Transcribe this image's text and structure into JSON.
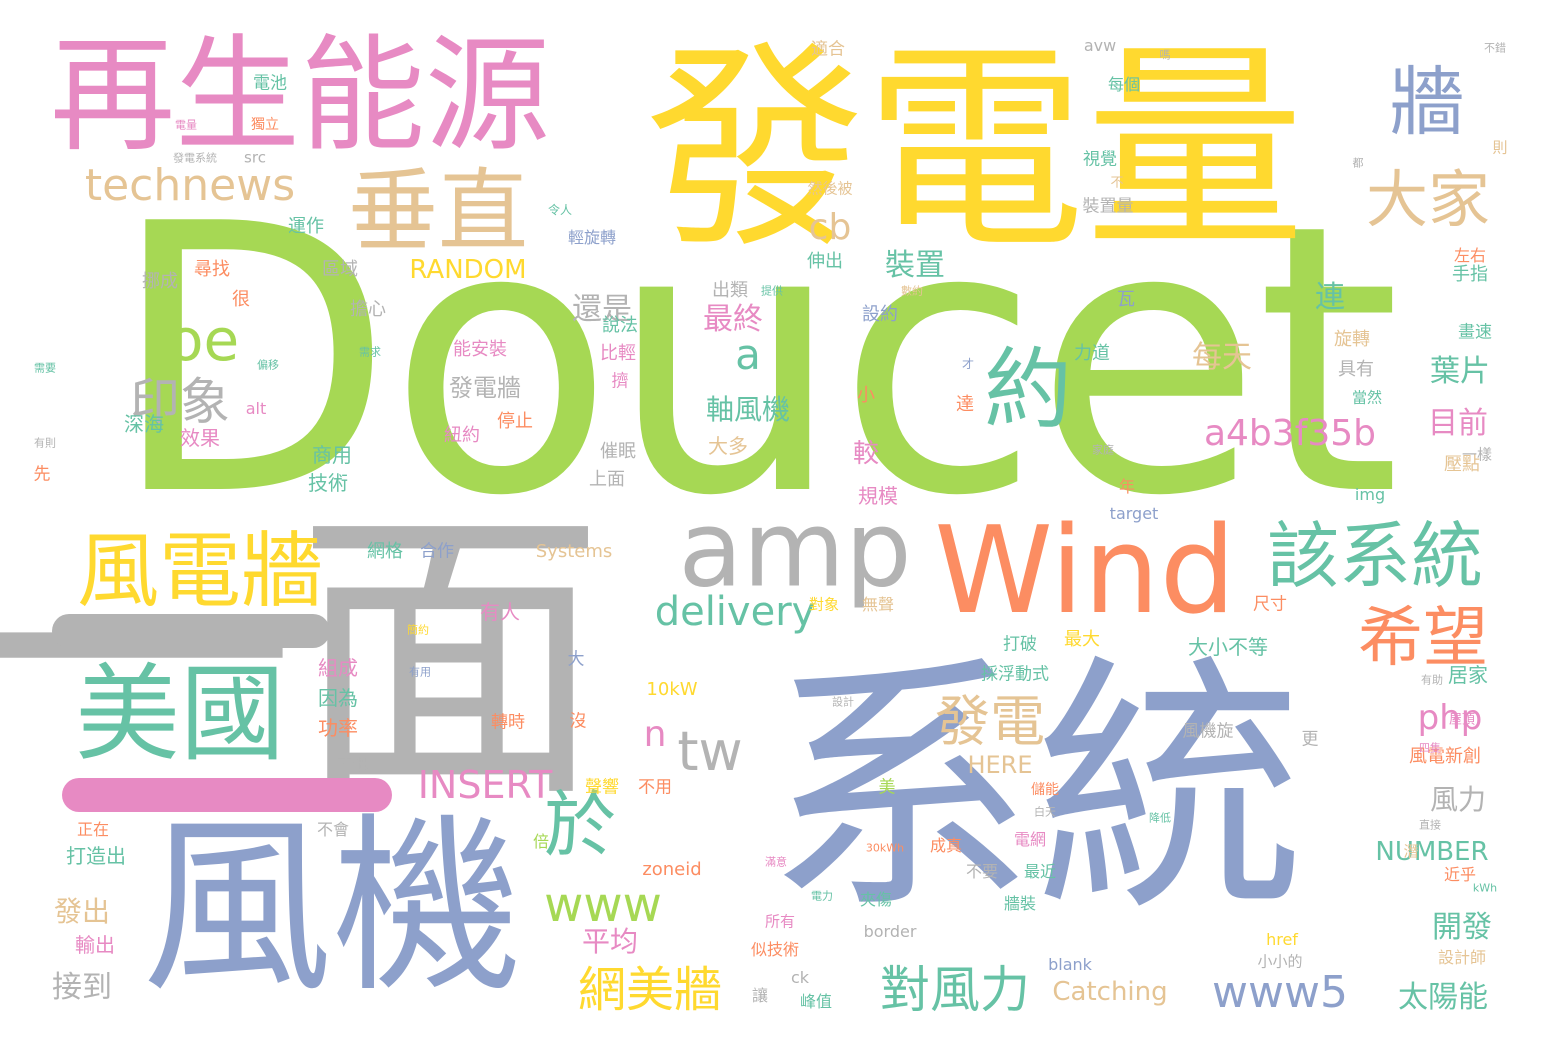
{
  "palette": {
    "green": "#a6d854",
    "yellow": "#ffd92f",
    "blue": "#8da0cb",
    "gray": "#b3b3b3",
    "orange": "#fc8d62",
    "pink": "#e78ac3",
    "teal": "#66c2a5",
    "tan": "#e5c494"
  },
  "words": [
    {
      "text": "Doucet",
      "color": "green"
    },
    {
      "text": "發電量",
      "color": "yellow"
    },
    {
      "text": "系統",
      "color": "blue"
    },
    {
      "text": "一面",
      "color": "gray"
    },
    {
      "text": "再生能源",
      "color": "pink"
    },
    {
      "text": "風機",
      "color": "blue"
    },
    {
      "text": "Wind",
      "color": "orange"
    },
    {
      "text": "amp",
      "color": "gray"
    },
    {
      "text": "美國",
      "color": "teal"
    },
    {
      "text": "風電牆",
      "color": "yellow"
    },
    {
      "text": "垂直",
      "color": "tan"
    },
    {
      "text": "約",
      "color": "teal"
    },
    {
      "text": "該系統",
      "color": "teal"
    },
    {
      "text": "牆",
      "color": "blue"
    },
    {
      "text": "大家",
      "color": "tan"
    },
    {
      "text": "希望",
      "color": "orange"
    },
    {
      "text": "technews",
      "color": "tan"
    },
    {
      "text": "Joe",
      "color": "green"
    },
    {
      "text": "印象",
      "color": "gray"
    },
    {
      "text": "於",
      "color": "teal"
    },
    {
      "text": "tw",
      "color": "gray"
    },
    {
      "text": "發電",
      "color": "tan"
    },
    {
      "text": "delivery",
      "color": "teal"
    },
    {
      "text": "www",
      "color": "green"
    },
    {
      "text": "網美牆",
      "color": "yellow"
    },
    {
      "text": "對風力",
      "color": "teal"
    },
    {
      "text": "www5",
      "color": "blue"
    },
    {
      "text": "a4b3f35b",
      "color": "pink"
    },
    {
      "text": "INSERT",
      "color": "pink"
    },
    {
      "text": "php",
      "color": "pink"
    },
    {
      "text": "a",
      "color": "teal"
    },
    {
      "text": "cb",
      "color": "tan"
    },
    {
      "text": "n",
      "color": "pink"
    },
    {
      "text": "RANDOM",
      "color": "yellow"
    },
    {
      "text": "裝置",
      "color": "teal"
    },
    {
      "text": "最終",
      "color": "pink"
    },
    {
      "text": "還是",
      "color": "gray"
    },
    {
      "text": "軸風機",
      "color": "teal"
    },
    {
      "text": "發電牆",
      "color": "gray"
    },
    {
      "text": "每天",
      "color": "tan"
    },
    {
      "text": "葉片",
      "color": "teal"
    },
    {
      "text": "目前",
      "color": "pink"
    },
    {
      "text": "連",
      "color": "teal"
    },
    {
      "text": "風力",
      "color": "gray"
    },
    {
      "text": "NUMBER",
      "color": "teal"
    },
    {
      "text": "開發",
      "color": "teal"
    },
    {
      "text": "太陽能",
      "color": "teal"
    },
    {
      "text": "Catching",
      "color": "tan"
    },
    {
      "text": "HERE",
      "color": "tan"
    },
    {
      "text": "平均",
      "color": "pink"
    },
    {
      "text": "發出",
      "color": "tan"
    },
    {
      "text": "接到",
      "color": "gray"
    },
    {
      "text": "輸出",
      "color": "pink"
    },
    {
      "text": "打造出",
      "color": "teal"
    },
    {
      "text": "深海",
      "color": "teal"
    },
    {
      "text": "效果",
      "color": "pink"
    },
    {
      "text": "商用",
      "color": "teal"
    },
    {
      "text": "技術",
      "color": "teal"
    },
    {
      "text": "網格",
      "color": "teal"
    },
    {
      "text": "組成",
      "color": "pink"
    },
    {
      "text": "因為",
      "color": "teal"
    },
    {
      "text": "功率",
      "color": "orange"
    },
    {
      "text": "有人",
      "color": "pink"
    },
    {
      "text": "大小不等",
      "color": "teal"
    },
    {
      "text": "居家",
      "color": "teal"
    },
    {
      "text": "風電新創",
      "color": "orange"
    },
    {
      "text": "手指",
      "color": "teal"
    },
    {
      "text": "畫速",
      "color": "teal"
    },
    {
      "text": "具有",
      "color": "gray"
    },
    {
      "text": "旋轉",
      "color": "tan"
    },
    {
      "text": "壓點",
      "color": "tan"
    },
    {
      "text": "規模",
      "color": "pink"
    },
    {
      "text": "較",
      "color": "pink"
    },
    {
      "text": "大多",
      "color": "tan"
    },
    {
      "text": "催眠",
      "color": "gray"
    },
    {
      "text": "上面",
      "color": "gray"
    },
    {
      "text": "紐約",
      "color": "pink"
    },
    {
      "text": "停止",
      "color": "orange"
    },
    {
      "text": "能安裝",
      "color": "pink"
    },
    {
      "text": "比輕",
      "color": "pink"
    },
    {
      "text": "說法",
      "color": "teal"
    },
    {
      "text": "出類",
      "color": "gray"
    },
    {
      "text": "伸出",
      "color": "teal"
    },
    {
      "text": "設約",
      "color": "blue"
    },
    {
      "text": "力道",
      "color": "teal"
    },
    {
      "text": "瓦",
      "color": "blue"
    },
    {
      "text": "小",
      "color": "orange"
    },
    {
      "text": "達",
      "color": "orange"
    },
    {
      "text": "擔心",
      "color": "gray"
    },
    {
      "text": "挪成",
      "color": "gray"
    },
    {
      "text": "尋找",
      "color": "orange"
    },
    {
      "text": "很",
      "color": "orange"
    },
    {
      "text": "區域",
      "color": "gray"
    },
    {
      "text": "運作",
      "color": "teal"
    },
    {
      "text": "獨立",
      "color": "orange"
    },
    {
      "text": "電池",
      "color": "teal"
    },
    {
      "text": "適合",
      "color": "tan"
    },
    {
      "text": "avw",
      "color": "gray"
    },
    {
      "text": "每個",
      "color": "teal"
    },
    {
      "text": "視覺",
      "color": "teal"
    },
    {
      "text": "裝置量",
      "color": "gray"
    },
    {
      "text": "然後被",
      "color": "tan"
    },
    {
      "text": "輕旋轉",
      "color": "blue"
    },
    {
      "text": "左右",
      "color": "orange"
    },
    {
      "text": "alt",
      "color": "pink"
    },
    {
      "text": "先",
      "color": "orange"
    },
    {
      "text": "擠",
      "color": "pink"
    },
    {
      "text": "src",
      "color": "gray"
    },
    {
      "text": "年",
      "color": "orange"
    },
    {
      "text": "img",
      "color": "teal"
    },
    {
      "text": "target",
      "color": "blue"
    },
    {
      "text": "Systems",
      "color": "tan"
    },
    {
      "text": "合作",
      "color": "blue"
    },
    {
      "text": "最大",
      "color": "yellow"
    },
    {
      "text": "打破",
      "color": "teal"
    },
    {
      "text": "採浮動式",
      "color": "teal"
    },
    {
      "text": "尺寸",
      "color": "orange"
    },
    {
      "text": "無聲",
      "color": "tan"
    },
    {
      "text": "對象",
      "color": "yellow"
    },
    {
      "text": "10kW",
      "color": "yellow"
    },
    {
      "text": "轉時",
      "color": "orange"
    },
    {
      "text": "沒",
      "color": "orange"
    },
    {
      "text": "大",
      "color": "blue"
    },
    {
      "text": "風機旋",
      "color": "gray"
    },
    {
      "text": "更",
      "color": "gray"
    },
    {
      "text": "屋頂",
      "color": "pink"
    },
    {
      "text": "不過",
      "color": "gray"
    },
    {
      "text": "聲響",
      "color": "yellow"
    },
    {
      "text": "不用",
      "color": "orange"
    },
    {
      "text": "美",
      "color": "green"
    },
    {
      "text": "儲能",
      "color": "orange"
    },
    {
      "text": "不會",
      "color": "gray"
    },
    {
      "text": "正在",
      "color": "orange"
    },
    {
      "text": "倍",
      "color": "green"
    },
    {
      "text": "成真",
      "color": "orange"
    },
    {
      "text": "電網",
      "color": "pink"
    },
    {
      "text": "最近",
      "color": "teal"
    },
    {
      "text": "不要",
      "color": "gray"
    },
    {
      "text": "zoneid",
      "color": "orange"
    },
    {
      "text": "夾傷",
      "color": "teal"
    },
    {
      "text": "牆裝",
      "color": "teal"
    },
    {
      "text": "近乎",
      "color": "orange"
    },
    {
      "text": "設計師",
      "color": "tan"
    },
    {
      "text": "href",
      "color": "yellow"
    },
    {
      "text": "小小的",
      "color": "gray"
    },
    {
      "text": "blank",
      "color": "blue"
    },
    {
      "text": "border",
      "color": "gray"
    },
    {
      "text": "似技術",
      "color": "orange"
    },
    {
      "text": "所有",
      "color": "pink"
    },
    {
      "text": "峰值",
      "color": "teal"
    },
    {
      "text": "ck",
      "color": "gray"
    },
    {
      "text": "讓",
      "color": "gray"
    },
    {
      "text": "潛",
      "color": "tan"
    },
    {
      "text": "一樣",
      "color": "gray"
    },
    {
      "text": "當然",
      "color": "teal"
    },
    {
      "text": "則",
      "color": "tan"
    },
    {
      "text": "不錯",
      "color": "gray"
    },
    {
      "text": "嗎",
      "color": "gray"
    },
    {
      "text": "都",
      "color": "gray"
    },
    {
      "text": "不",
      "color": "tan"
    },
    {
      "text": "令人",
      "color": "teal"
    },
    {
      "text": "才",
      "color": "blue"
    },
    {
      "text": "家庭",
      "color": "gray"
    },
    {
      "text": "kWh",
      "color": "teal"
    },
    {
      "text": "直接",
      "color": "gray"
    },
    {
      "text": "四隻",
      "color": "pink"
    },
    {
      "text": "有助",
      "color": "gray"
    },
    {
      "text": "需求",
      "color": "teal"
    },
    {
      "text": "偏移",
      "color": "teal"
    },
    {
      "text": "有則",
      "color": "gray"
    },
    {
      "text": "電量",
      "color": "pink"
    },
    {
      "text": "發電系統",
      "color": "gray"
    },
    {
      "text": "需要",
      "color": "teal"
    },
    {
      "text": "簡約",
      "color": "yellow"
    },
    {
      "text": "有用",
      "color": "blue"
    },
    {
      "text": "設計",
      "color": "gray"
    },
    {
      "text": "30kWh",
      "color": "orange"
    },
    {
      "text": "電力",
      "color": "teal"
    },
    {
      "text": "白天",
      "color": "gray"
    },
    {
      "text": "降低",
      "color": "teal"
    },
    {
      "text": "滿意",
      "color": "pink"
    },
    {
      "text": "提供",
      "color": "teal"
    },
    {
      "text": "數約",
      "color": "tan"
    }
  ]
}
